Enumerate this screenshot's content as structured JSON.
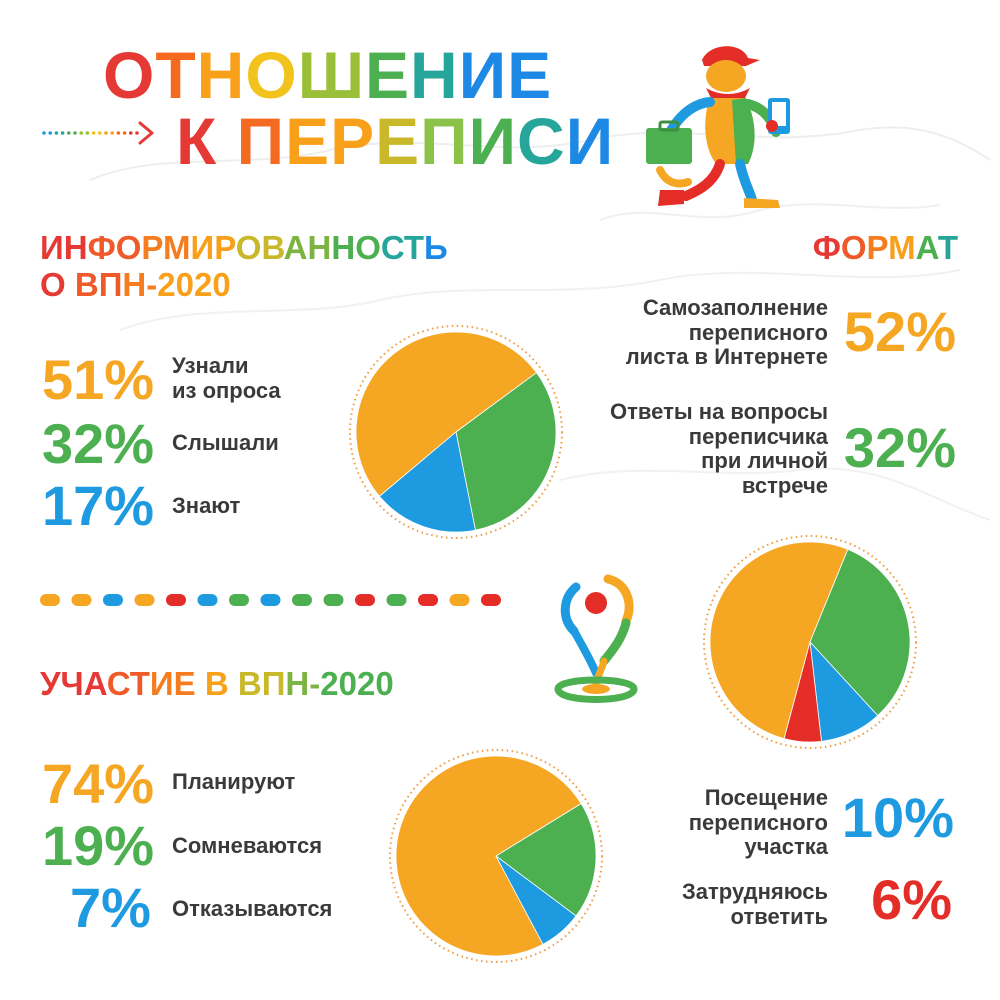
{
  "title": {
    "line1": "ОТНОШЕНИЕ",
    "line2": "К ПЕРЕПИСИ",
    "line1_colors": [
      "#e53935",
      "#f46a20",
      "#f9a01b",
      "#f2c31c",
      "#9ac03a",
      "#4caf50",
      "#26a69a",
      "#1e88e5",
      "#1e88e5",
      "#3949ab"
    ],
    "line2_colors": [
      "#e53935",
      "#f46a20",
      "#f9a01b",
      "#f9a01b",
      "#c8b82a",
      "#8bc34a",
      "#4caf50",
      "#26a69a",
      "#1e88e5",
      "#2196f3"
    ]
  },
  "colors": {
    "orange": "#f5a623",
    "green": "#4caf50",
    "blue": "#1e9be0",
    "red": "#e52d27"
  },
  "sections": {
    "awareness": {
      "title_line1": "ИНФОРМИРОВАННОСТЬ",
      "title_line2": "О ВПН-2020",
      "items": [
        {
          "value": "51%",
          "label_line1": "Узнали",
          "label_line2": "из опроса",
          "color": "#f5a623"
        },
        {
          "value": "32%",
          "label_line1": "Слышали",
          "label_line2": "",
          "color": "#4caf50"
        },
        {
          "value": "17%",
          "label_line1": "Знают",
          "label_line2": "",
          "color": "#1e9be0"
        }
      ]
    },
    "format": {
      "title": "ФОРМАТ",
      "items": [
        {
          "value": "52%",
          "label_lines": [
            "Самозаполнение",
            "переписного",
            "листа в Интернете"
          ],
          "color": "#f5a623"
        },
        {
          "value": "32%",
          "label_lines": [
            "Ответы на вопросы",
            "переписчика",
            "при личной",
            "встрече"
          ],
          "color": "#4caf50"
        },
        {
          "value": "10%",
          "label_lines": [
            "Посещение",
            "переписного",
            "участка"
          ],
          "color": "#1e9be0"
        },
        {
          "value": "6%",
          "label_lines": [
            "Затрудняюсь",
            "ответить"
          ],
          "color": "#e52d27"
        }
      ]
    },
    "participation": {
      "title": "УЧАСТИЕ В ВПН-2020",
      "items": [
        {
          "value": "74%",
          "label": "Планируют",
          "color": "#f5a623"
        },
        {
          "value": "19%",
          "label": "Сомневаются",
          "color": "#4caf50"
        },
        {
          "value": "7%",
          "label": "Отказываются",
          "color": "#1e9be0"
        }
      ]
    }
  },
  "divider_dot_colors": [
    "#f5a623",
    "#f5a623",
    "#1e9be0",
    "#f5a623",
    "#e52d27",
    "#1e9be0",
    "#4caf50",
    "#1e9be0",
    "#4caf50",
    "#4caf50",
    "#e52d27",
    "#4caf50",
    "#e52d27",
    "#f5a623",
    "#e52d27"
  ],
  "chart_data": [
    {
      "type": "pie",
      "title": "ИНФОРМИРОВАННОСТЬ О ВПН-2020",
      "slices": [
        {
          "name": "Узнали из опроса",
          "value": 51,
          "color": "#f5a623"
        },
        {
          "name": "Слышали",
          "value": 32,
          "color": "#4caf50"
        },
        {
          "name": "Знают",
          "value": 17,
          "color": "#1e9be0"
        }
      ]
    },
    {
      "type": "pie",
      "title": "ФОРМАТ",
      "slices": [
        {
          "name": "Самозаполнение переписного листа в Интернете",
          "value": 52,
          "color": "#f5a623"
        },
        {
          "name": "Ответы на вопросы переписчика при личной встрече",
          "value": 32,
          "color": "#4caf50"
        },
        {
          "name": "Посещение переписного участка",
          "value": 10,
          "color": "#1e9be0"
        },
        {
          "name": "Затрудняюсь ответить",
          "value": 6,
          "color": "#e52d27"
        }
      ]
    },
    {
      "type": "pie",
      "title": "УЧАСТИЕ В ВПН-2020",
      "slices": [
        {
          "name": "Планируют",
          "value": 74,
          "color": "#f5a623"
        },
        {
          "name": "Сомневаются",
          "value": 19,
          "color": "#4caf50"
        },
        {
          "name": "Отказываются",
          "value": 7,
          "color": "#1e9be0"
        }
      ]
    }
  ]
}
